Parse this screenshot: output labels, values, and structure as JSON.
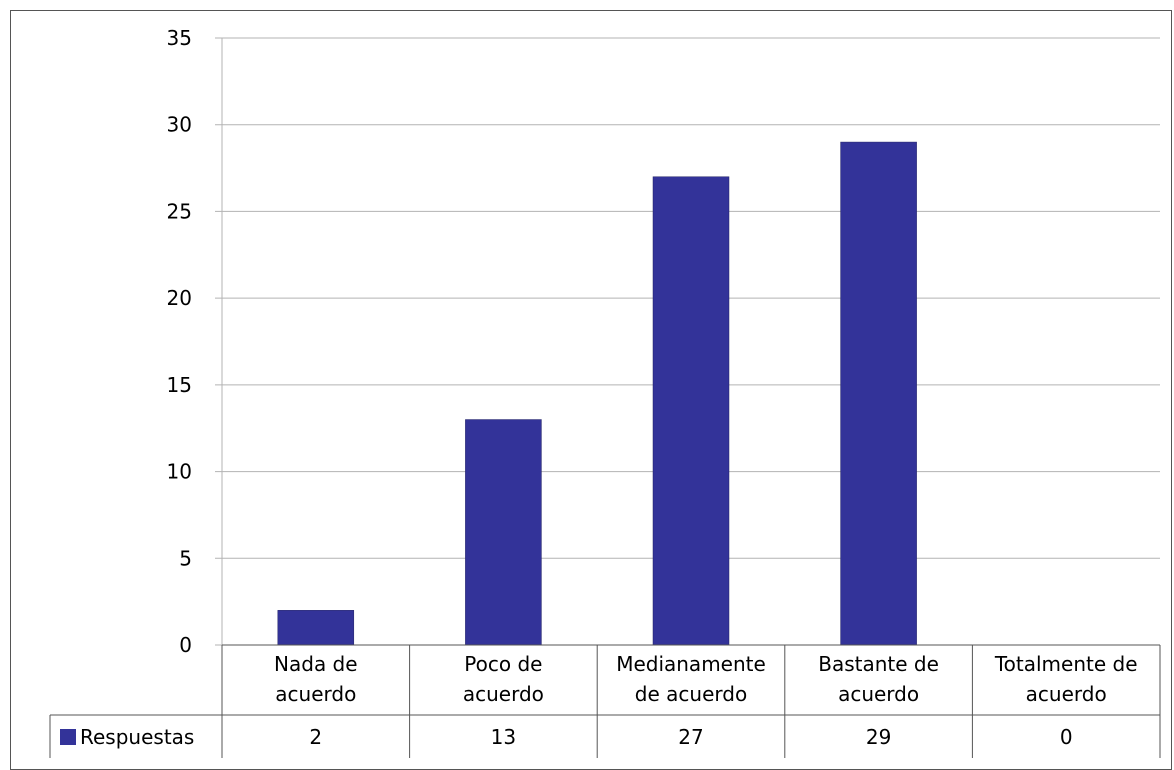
{
  "chart_data": {
    "type": "bar",
    "categories": [
      [
        "Nada de",
        "acuerdo"
      ],
      [
        "Poco de",
        "acuerdo"
      ],
      [
        "Medianamente",
        "de acuerdo"
      ],
      [
        "Bastante de",
        "acuerdo"
      ],
      [
        "Totalmente de",
        "acuerdo"
      ]
    ],
    "series": [
      {
        "name": "Respuestas",
        "values": [
          2,
          13,
          27,
          29,
          0
        ],
        "color": "#333399"
      }
    ],
    "ylim": [
      0,
      35
    ],
    "yticks": [
      0,
      5,
      10,
      15,
      20,
      25,
      30,
      35
    ],
    "grid": true,
    "legend": "data-table"
  }
}
